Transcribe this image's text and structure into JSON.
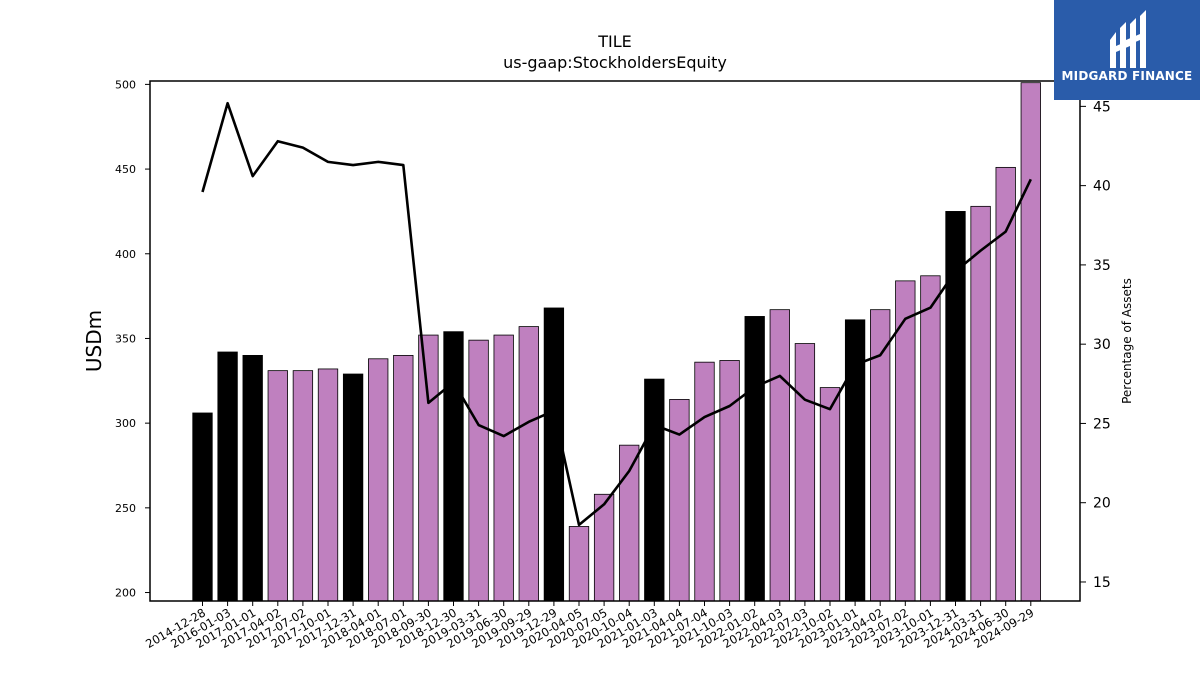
{
  "title": "TILE",
  "subtitle": "us-gaap:StockholdersEquity",
  "logo": {
    "text": "MIDGARD FINANCE",
    "icon": "midgard-logo-icon",
    "color": "#2a5caa"
  },
  "chart_data": {
    "type": "bar",
    "categories": [
      "2014-12-28",
      "2016-01-03",
      "2017-01-01",
      "2017-04-02",
      "2017-07-02",
      "2017-10-01",
      "2017-12-31",
      "2018-04-01",
      "2018-07-01",
      "2018-09-30",
      "2018-12-30",
      "2019-03-31",
      "2019-06-30",
      "2019-09-29",
      "2019-12-29",
      "2020-04-05",
      "2020-07-05",
      "2020-10-04",
      "2021-01-03",
      "2021-04-04",
      "2021-07-04",
      "2021-10-03",
      "2022-01-02",
      "2022-04-03",
      "2022-07-03",
      "2022-10-02",
      "2023-01-01",
      "2023-04-02",
      "2023-07-02",
      "2023-10-01",
      "2023-12-31",
      "2024-03-31",
      "2024-06-30",
      "2024-09-29"
    ],
    "series": [
      {
        "axis": "left",
        "kind": "bar",
        "values": [
          306,
          342,
          340,
          331,
          331,
          332,
          329,
          338,
          340,
          352,
          354,
          349,
          352,
          357,
          368,
          239,
          258,
          287,
          326,
          314,
          336,
          337,
          363,
          367,
          347,
          321,
          361,
          367,
          384,
          387,
          425,
          428,
          451,
          501
        ],
        "annual_flags": [
          1,
          1,
          1,
          0,
          0,
          0,
          1,
          0,
          0,
          0,
          1,
          0,
          0,
          0,
          1,
          0,
          0,
          0,
          1,
          0,
          0,
          0,
          1,
          0,
          0,
          0,
          1,
          0,
          0,
          0,
          1,
          0,
          0,
          0
        ],
        "colors": {
          "annual": "#000000",
          "quarterly": "#bf80bf"
        }
      },
      {
        "axis": "right",
        "kind": "line",
        "color": "#000000",
        "values": [
          39.6,
          45.2,
          40.6,
          42.8,
          42.4,
          41.5,
          41.3,
          41.5,
          41.3,
          26.3,
          27.6,
          24.9,
          24.2,
          25.1,
          25.8,
          18.6,
          19.9,
          22.0,
          24.9,
          24.3,
          25.4,
          26.1,
          27.3,
          28.0,
          26.5,
          25.9,
          28.7,
          29.3,
          31.6,
          32.3,
          34.6,
          35.9,
          37.1,
          40.4
        ]
      }
    ],
    "ylabel_left": "USDm",
    "ylabel_right": "Percentage of Assets",
    "ylim_left": [
      195,
      502
    ],
    "yticks_left": [
      200,
      250,
      300,
      350,
      400,
      450,
      500
    ],
    "ylim_right": [
      13.8,
      46.6
    ],
    "yticks_right": [
      15,
      20,
      25,
      30,
      35,
      40,
      45
    ],
    "grid": false,
    "legend": "none"
  }
}
